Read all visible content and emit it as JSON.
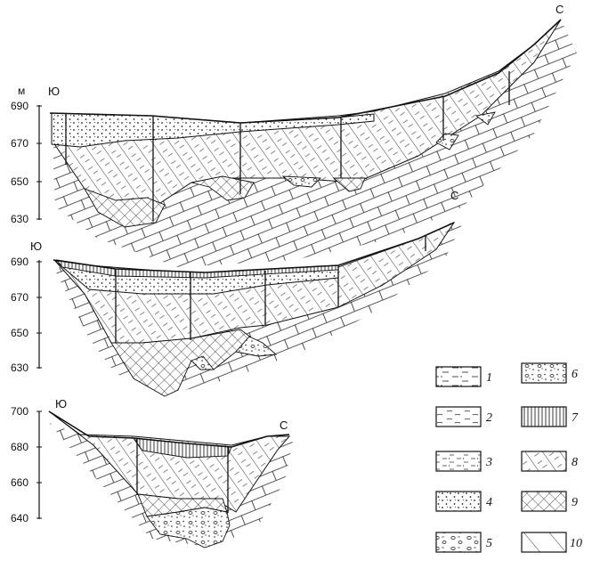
{
  "profiles": [
    {
      "unit_label": "м",
      "left_dir": "Ю",
      "right_dir": "С",
      "ticks": [
        "690",
        "670",
        "650",
        "630"
      ]
    },
    {
      "unit_label": "",
      "left_dir": "Ю",
      "right_dir": "С",
      "ticks": [
        "690",
        "670",
        "650",
        "630"
      ]
    },
    {
      "unit_label": "",
      "left_dir": "Ю",
      "right_dir": "С",
      "ticks": [
        "700",
        "680",
        "660",
        "640"
      ]
    }
  ],
  "legend": [
    {
      "num": "1",
      "pattern": "dash-dot"
    },
    {
      "num": "2",
      "pattern": "dash"
    },
    {
      "num": "3",
      "pattern": "dash-dot-fine"
    },
    {
      "num": "4",
      "pattern": "dots"
    },
    {
      "num": "5",
      "pattern": "gravel"
    },
    {
      "num": "6",
      "pattern": "gravel-dots"
    },
    {
      "num": "7",
      "pattern": "vertical-lines"
    },
    {
      "num": "8",
      "pattern": "diagonal"
    },
    {
      "num": "9",
      "pattern": "crosshatch"
    },
    {
      "num": "10",
      "pattern": "diagonal-sparse"
    }
  ]
}
